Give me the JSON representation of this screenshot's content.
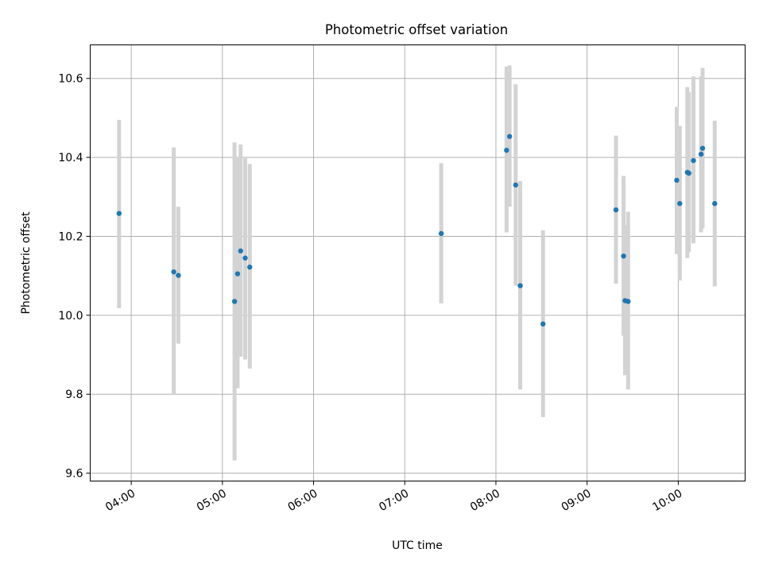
{
  "chart_data": {
    "type": "scatter",
    "title": "Photometric offset variation",
    "xlabel": "UTC time",
    "ylabel": "Photometric offset",
    "xlim": [
      "03:33",
      "10:44"
    ],
    "ylim": [
      9.58,
      10.685
    ],
    "grid": true,
    "x_ticks": [
      "04:00",
      "05:00",
      "06:00",
      "07:00",
      "08:00",
      "09:00",
      "10:00"
    ],
    "y_ticks": [
      9.6,
      9.8,
      10.0,
      10.2,
      10.4,
      10.6
    ],
    "y_tick_labels": [
      "9.6",
      "9.8",
      "10.0",
      "10.2",
      "10.4",
      "10.6"
    ],
    "colors": {
      "marker": "#1f77b4",
      "errorbar": "#d3d3d3",
      "grid": "#b0b0b0"
    },
    "series": [
      {
        "points": [
          {
            "x": "03:52",
            "y": 10.258,
            "ylo": 10.018,
            "yhi": 10.495
          },
          {
            "x": "04:28",
            "y": 10.11,
            "ylo": 9.798,
            "yhi": 10.425
          },
          {
            "x": "04:31",
            "y": 10.101,
            "ylo": 9.928,
            "yhi": 10.275
          },
          {
            "x": "05:08",
            "y": 10.035,
            "ylo": 9.632,
            "yhi": 10.438
          },
          {
            "x": "05:10",
            "y": 10.105,
            "ylo": 9.815,
            "yhi": 10.398
          },
          {
            "x": "05:12",
            "y": 10.163,
            "ylo": 9.895,
            "yhi": 10.433
          },
          {
            "x": "05:15",
            "y": 10.145,
            "ylo": 9.888,
            "yhi": 10.398
          },
          {
            "x": "05:18",
            "y": 10.122,
            "ylo": 9.865,
            "yhi": 10.383
          },
          {
            "x": "07:24",
            "y": 10.207,
            "ylo": 10.03,
            "yhi": 10.385
          },
          {
            "x": "08:07",
            "y": 10.418,
            "ylo": 10.21,
            "yhi": 10.63
          },
          {
            "x": "08:09",
            "y": 10.453,
            "ylo": 10.275,
            "yhi": 10.633
          },
          {
            "x": "08:13",
            "y": 10.33,
            "ylo": 10.075,
            "yhi": 10.585
          },
          {
            "x": "08:16",
            "y": 10.075,
            "ylo": 9.812,
            "yhi": 10.34
          },
          {
            "x": "08:31",
            "y": 9.978,
            "ylo": 9.742,
            "yhi": 10.215
          },
          {
            "x": "09:19",
            "y": 10.267,
            "ylo": 10.08,
            "yhi": 10.455
          },
          {
            "x": "09:24",
            "y": 10.15,
            "ylo": 9.948,
            "yhi": 10.353
          },
          {
            "x": "09:25",
            "y": 10.037,
            "ylo": 9.848,
            "yhi": 10.228
          },
          {
            "x": "09:27",
            "y": 10.035,
            "ylo": 9.812,
            "yhi": 10.262
          },
          {
            "x": "09:59",
            "y": 10.342,
            "ylo": 10.155,
            "yhi": 10.528
          },
          {
            "x": "10:01",
            "y": 10.283,
            "ylo": 10.088,
            "yhi": 10.48
          },
          {
            "x": "10:06",
            "y": 10.362,
            "ylo": 10.145,
            "yhi": 10.578
          },
          {
            "x": "10:07",
            "y": 10.36,
            "ylo": 10.16,
            "yhi": 10.565
          },
          {
            "x": "10:10",
            "y": 10.392,
            "ylo": 10.182,
            "yhi": 10.605
          },
          {
            "x": "10:15",
            "y": 10.408,
            "ylo": 10.21,
            "yhi": 10.605
          },
          {
            "x": "10:16",
            "y": 10.423,
            "ylo": 10.22,
            "yhi": 10.627
          },
          {
            "x": "10:24",
            "y": 10.283,
            "ylo": 10.073,
            "yhi": 10.493
          }
        ]
      }
    ]
  }
}
